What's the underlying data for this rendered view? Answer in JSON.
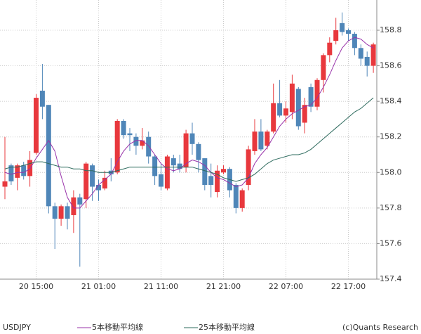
{
  "chart_data": {
    "type": "candlestick",
    "symbol": "USDJPY",
    "copyright": "(c)Quants Research",
    "categories": [
      null,
      null,
      null,
      null,
      null,
      "20 15:00",
      null,
      null,
      null,
      null,
      null,
      null,
      null,
      null,
      null,
      "21 01:00",
      null,
      null,
      null,
      null,
      null,
      null,
      null,
      null,
      null,
      "21 11:00",
      null,
      null,
      null,
      null,
      null,
      null,
      null,
      null,
      null,
      "21 21:00",
      null,
      null,
      null,
      null,
      null,
      null,
      null,
      null,
      null,
      "22 07:00",
      null,
      null,
      null,
      null,
      null,
      null,
      null,
      null,
      null,
      "22 17:00",
      null,
      null,
      null,
      null
    ],
    "open": [
      157.92,
      158.04,
      157.97,
      158.04,
      157.98,
      158.11,
      158.46,
      158.38,
      157.81,
      157.74,
      157.81,
      157.76,
      157.86,
      157.85,
      158.04,
      157.93,
      157.91,
      158.01,
      158.0,
      158.29,
      158.22,
      158.2,
      158.15,
      158.2,
      158.09,
      157.99,
      157.91,
      158.08,
      158.05,
      158.03,
      158.22,
      158.16,
      158.08,
      157.98,
      157.89,
      158.0,
      158.02,
      157.93,
      157.8,
      157.93,
      158.12,
      158.23,
      158.15,
      158.23,
      158.39,
      158.32,
      158.34,
      158.47,
      158.28,
      158.48,
      158.37,
      158.52,
      158.66,
      158.74,
      158.84,
      158.8,
      158.78,
      158.7,
      158.65,
      158.6
    ],
    "high": [
      158.2,
      158.05,
      158.05,
      158.06,
      158.12,
      158.44,
      158.61,
      158.38,
      157.83,
      157.82,
      157.83,
      157.9,
      157.88,
      158.06,
      158.05,
      157.96,
      158.01,
      158.08,
      158.3,
      158.3,
      158.25,
      158.22,
      158.25,
      158.23,
      158.1,
      158.05,
      158.1,
      158.1,
      158.1,
      158.24,
      158.28,
      158.17,
      158.08,
      158.05,
      158.04,
      158.04,
      158.03,
      157.94,
      157.91,
      158.15,
      158.3,
      158.3,
      158.24,
      158.5,
      158.52,
      158.4,
      158.55,
      158.48,
      158.42,
      158.5,
      158.53,
      158.67,
      158.76,
      158.87,
      158.9,
      158.81,
      158.79,
      158.72,
      158.68,
      158.73
    ],
    "low": [
      157.85,
      157.93,
      157.9,
      157.96,
      157.92,
      158.1,
      158.3,
      157.77,
      157.57,
      157.7,
      157.68,
      157.66,
      157.47,
      157.8,
      157.84,
      157.84,
      157.9,
      157.95,
      157.99,
      158.19,
      158.12,
      158.1,
      158.13,
      158.05,
      157.93,
      157.9,
      157.9,
      158.0,
      158.0,
      158.0,
      158.1,
      158.0,
      157.9,
      157.86,
      157.86,
      157.99,
      157.86,
      157.77,
      157.78,
      157.9,
      158.1,
      158.12,
      158.13,
      158.22,
      158.31,
      158.28,
      158.3,
      158.24,
      158.22,
      158.34,
      158.35,
      158.45,
      158.62,
      158.72,
      158.77,
      158.74,
      158.66,
      158.6,
      158.54,
      158.56
    ],
    "close": [
      157.95,
      157.95,
      158.04,
      157.98,
      158.07,
      158.42,
      158.37,
      157.81,
      157.74,
      157.81,
      157.74,
      157.86,
      157.82,
      158.05,
      157.92,
      157.9,
      157.97,
      157.99,
      158.29,
      158.21,
      158.21,
      158.15,
      158.18,
      158.09,
      157.98,
      157.92,
      158.09,
      158.04,
      158.02,
      158.22,
      158.16,
      158.07,
      157.93,
      157.93,
      158.01,
      158.02,
      157.9,
      157.8,
      157.9,
      158.13,
      158.23,
      158.13,
      158.23,
      158.39,
      158.32,
      158.36,
      158.5,
      158.26,
      158.38,
      158.37,
      158.52,
      158.66,
      158.73,
      158.8,
      158.79,
      158.78,
      158.7,
      158.64,
      158.6,
      158.72
    ],
    "up_color": "#e8383d",
    "down_color": "#4f86b8",
    "lines": [
      {
        "name": "5本移動平均線",
        "color": "#9933aa",
        "values": [
          158.0,
          157.99,
          158.0,
          158.0,
          158.02,
          158.08,
          158.13,
          158.18,
          158.12,
          157.98,
          157.86,
          157.8,
          157.8,
          157.84,
          157.88,
          157.93,
          157.96,
          157.99,
          158.06,
          158.12,
          158.16,
          158.18,
          158.18,
          158.15,
          158.1,
          158.05,
          158.02,
          158.01,
          158.02,
          158.05,
          158.07,
          158.06,
          158.04,
          158.0,
          157.97,
          157.96,
          157.94,
          157.92,
          157.93,
          157.97,
          158.05,
          158.1,
          158.14,
          158.2,
          158.26,
          158.3,
          158.33,
          158.35,
          158.37,
          158.38,
          158.42,
          158.48,
          158.55,
          158.63,
          158.7,
          158.74,
          158.76,
          158.75,
          158.72,
          158.7
        ]
      },
      {
        "name": "25本移動平均線",
        "color": "#2e6b5e",
        "values": [
          158.02,
          158.03,
          158.03,
          158.04,
          158.05,
          158.06,
          158.06,
          158.05,
          158.04,
          158.03,
          158.03,
          158.02,
          158.02,
          158.01,
          158.01,
          158.0,
          158.0,
          158.0,
          158.01,
          158.02,
          158.03,
          158.03,
          158.03,
          158.03,
          158.03,
          158.03,
          158.03,
          158.03,
          158.03,
          158.03,
          158.03,
          158.02,
          158.01,
          158.0,
          157.99,
          157.97,
          157.96,
          157.95,
          157.96,
          157.97,
          157.99,
          158.02,
          158.05,
          158.07,
          158.08,
          158.09,
          158.1,
          158.1,
          158.11,
          158.13,
          158.16,
          158.19,
          158.22,
          158.25,
          158.28,
          158.31,
          158.34,
          158.36,
          158.39,
          158.42
        ]
      }
    ],
    "ylim": [
      157.4,
      158.97
    ],
    "yticks": [
      157.4,
      157.6,
      157.8,
      {
        "value": 158,
        "label": "158.0"
      },
      158.2,
      158.4,
      158.6,
      158.8
    ],
    "grid": true
  }
}
